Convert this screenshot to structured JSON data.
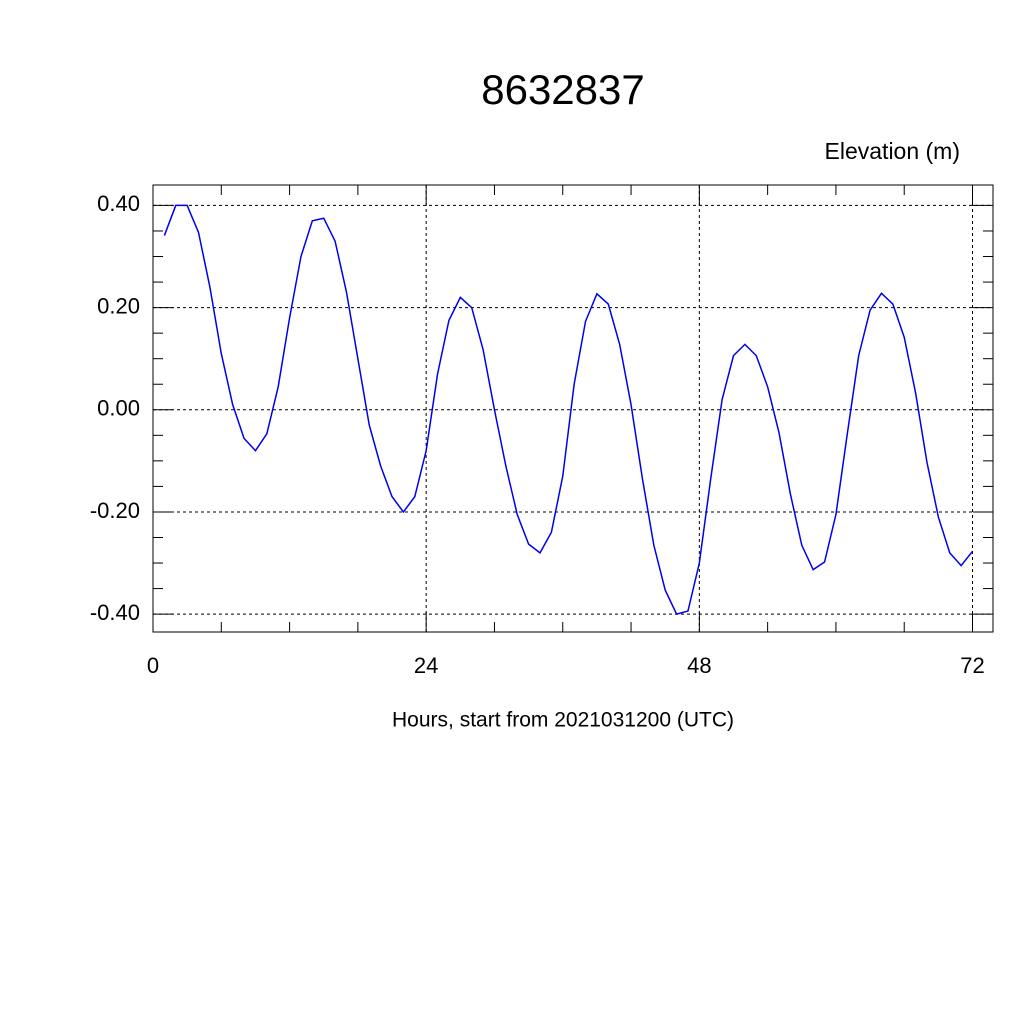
{
  "chart_data": {
    "type": "line",
    "title": "8632837",
    "subtitle": "Elevation (m)",
    "x_label": "Hours, start from 2021031200 (UTC)",
    "x": [
      1,
      2,
      3,
      4,
      5,
      6,
      7,
      8,
      9,
      10,
      11,
      12,
      13,
      14,
      15,
      16,
      17,
      18,
      19,
      20,
      21,
      22,
      23,
      24,
      25,
      26,
      27,
      28,
      29,
      30,
      31,
      32,
      33,
      34,
      35,
      36,
      37,
      38,
      39,
      40,
      41,
      42,
      43,
      44,
      45,
      46,
      47,
      48,
      49,
      50,
      51,
      52,
      53,
      54,
      55,
      56,
      57,
      58,
      59,
      60,
      61,
      62,
      63,
      64,
      65,
      66,
      67,
      68,
      69,
      70,
      71,
      72
    ],
    "series": [
      {
        "color": "#0000ee",
        "values": [
          0.341,
          0.4,
          0.4,
          0.347,
          0.24,
          0.11,
          0.01,
          -0.056,
          -0.08,
          -0.047,
          0.045,
          0.18,
          0.3,
          0.37,
          0.375,
          0.33,
          0.23,
          0.1,
          -0.03,
          -0.11,
          -0.17,
          -0.2,
          -0.17,
          -0.08,
          0.07,
          0.175,
          0.22,
          0.2,
          0.118,
          0.0,
          -0.11,
          -0.205,
          -0.263,
          -0.28,
          -0.24,
          -0.13,
          0.05,
          0.173,
          0.227,
          0.207,
          0.128,
          0.01,
          -0.135,
          -0.265,
          -0.353,
          -0.4,
          -0.394,
          -0.3,
          -0.135,
          0.02,
          0.106,
          0.128,
          0.106,
          0.045,
          -0.045,
          -0.165,
          -0.265,
          -0.313,
          -0.298,
          -0.205,
          -0.047,
          0.106,
          0.195,
          0.228,
          0.207,
          0.142,
          0.033,
          -0.103,
          -0.21,
          -0.28,
          -0.305,
          -0.277
        ]
      }
    ],
    "xlim": [
      0,
      73.8
    ],
    "ylim": [
      -0.435,
      0.44
    ],
    "xticks": [
      0,
      24,
      48,
      72
    ],
    "yticks": [
      {
        "value": -0.4,
        "label": "-0.40"
      },
      {
        "value": -0.2,
        "label": "-0.20"
      },
      {
        "value": 0,
        "label": "0.00"
      },
      {
        "value": 0.2,
        "label": "0.20"
      },
      {
        "value": 0.4,
        "label": "0.40"
      }
    ],
    "xminorticks": [
      6,
      12,
      18,
      30,
      36,
      42,
      54,
      60,
      66
    ],
    "yminorticks": [
      -0.35,
      -0.3,
      -0.25,
      -0.15,
      -0.1,
      -0.05,
      0.05,
      0.1,
      0.15,
      0.25,
      0.3,
      0.35
    ],
    "grid": true
  }
}
